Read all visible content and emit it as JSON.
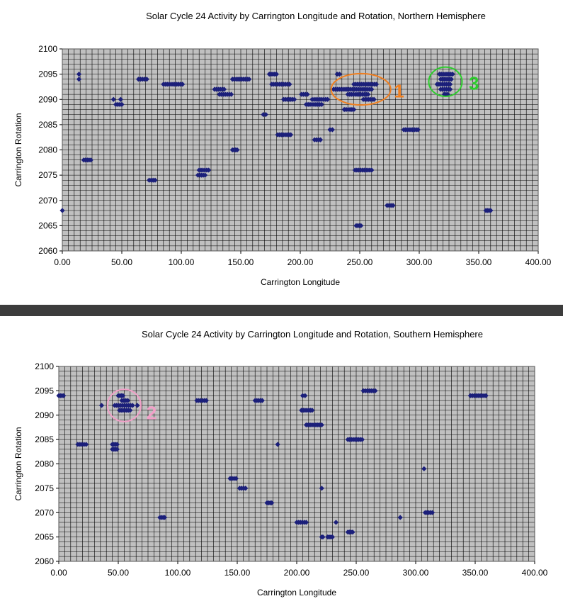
{
  "chart_data": [
    {
      "type": "scatter",
      "title": "Solar Cycle 24 Activity by Carrington Longitude and Rotation, Northern Hemisphere",
      "xlabel": "Carrington Longitude",
      "ylabel": "Carrington Rotation",
      "xlim": [
        0,
        400
      ],
      "ylim": [
        2060,
        2100
      ],
      "xticks": [
        "0.00",
        "50.00",
        "100.00",
        "150.00",
        "200.00",
        "250.00",
        "300.00",
        "350.00",
        "400.00"
      ],
      "yticks": [
        "2060",
        "2065",
        "2070",
        "2075",
        "2080",
        "2085",
        "2090",
        "2095",
        "2100"
      ],
      "grid": true,
      "marker_color": "#1b1f7a",
      "plot_bg": "#c0c0c0",
      "segments": [
        {
          "y": 2095,
          "x0": 14,
          "x1": 14
        },
        {
          "y": 2094,
          "x0": 14,
          "x1": 14
        },
        {
          "y": 2090,
          "x0": 43,
          "x1": 43
        },
        {
          "y": 2090,
          "x0": 49,
          "x1": 49
        },
        {
          "y": 2089,
          "x0": 45,
          "x1": 50
        },
        {
          "y": 2094,
          "x0": 64,
          "x1": 71
        },
        {
          "y": 2093,
          "x0": 85,
          "x1": 101
        },
        {
          "y": 2092,
          "x0": 128,
          "x1": 136
        },
        {
          "y": 2091,
          "x0": 132,
          "x1": 142
        },
        {
          "y": 2094,
          "x0": 143,
          "x1": 157
        },
        {
          "y": 2095,
          "x0": 174,
          "x1": 180
        },
        {
          "y": 2093,
          "x0": 176,
          "x1": 191
        },
        {
          "y": 2090,
          "x0": 186,
          "x1": 195
        },
        {
          "y": 2091,
          "x0": 201,
          "x1": 206
        },
        {
          "y": 2089,
          "x0": 205,
          "x1": 218
        },
        {
          "y": 2090,
          "x0": 210,
          "x1": 223
        },
        {
          "y": 2087,
          "x0": 169,
          "x1": 171
        },
        {
          "y": 2084,
          "x0": 225,
          "x1": 227
        },
        {
          "y": 2083,
          "x0": 181,
          "x1": 192
        },
        {
          "y": 2082,
          "x0": 212,
          "x1": 217
        },
        {
          "y": 2080,
          "x0": 143,
          "x1": 147
        },
        {
          "y": 2078,
          "x0": 18,
          "x1": 24
        },
        {
          "y": 2076,
          "x0": 115,
          "x1": 123
        },
        {
          "y": 2075,
          "x0": 114,
          "x1": 120
        },
        {
          "y": 2074,
          "x0": 73,
          "x1": 78
        },
        {
          "y": 2068,
          "x0": 0,
          "x1": 0
        },
        {
          "y": 2095,
          "x0": 231,
          "x1": 233
        },
        {
          "y": 2093,
          "x0": 245,
          "x1": 264
        },
        {
          "y": 2092,
          "x0": 228,
          "x1": 260
        },
        {
          "y": 2091,
          "x0": 240,
          "x1": 257
        },
        {
          "y": 2090,
          "x0": 253,
          "x1": 262
        },
        {
          "y": 2088,
          "x0": 237,
          "x1": 245
        },
        {
          "y": 2084,
          "x0": 287,
          "x1": 299
        },
        {
          "y": 2076,
          "x0": 246,
          "x1": 260
        },
        {
          "y": 2069,
          "x0": 273,
          "x1": 278
        },
        {
          "y": 2065,
          "x0": 247,
          "x1": 251
        },
        {
          "y": 2068,
          "x0": 356,
          "x1": 360
        },
        {
          "y": 2095,
          "x0": 317,
          "x1": 328
        },
        {
          "y": 2094,
          "x0": 318,
          "x1": 327
        },
        {
          "y": 2093,
          "x0": 315,
          "x1": 326
        },
        {
          "y": 2092,
          "x0": 318,
          "x1": 326
        },
        {
          "y": 2091,
          "x0": 321,
          "x1": 324
        }
      ],
      "annotations": [
        {
          "label": "1",
          "x": 251,
          "y": 2092,
          "rx": 25,
          "ry": 3.1,
          "color": "#f07f20",
          "label_x": 283,
          "label_y": 2090.4
        },
        {
          "label": "3",
          "x": 322,
          "y": 2093.5,
          "rx": 14,
          "ry": 2.9,
          "color": "#2ecc2e",
          "label_x": 346,
          "label_y": 2091.9
        }
      ]
    },
    {
      "type": "scatter",
      "title": "Solar Cycle 24 Activity by Carrington Longitude and Rotation, Southern Hemisphere",
      "xlabel": "Carrington Longitude",
      "ylabel": "Carrington Rotation",
      "xlim": [
        0,
        400
      ],
      "ylim": [
        2060,
        2100
      ],
      "xticks": [
        "0.00",
        "50.00",
        "100.00",
        "150.00",
        "200.00",
        "250.00",
        "300.00",
        "350.00",
        "400.00"
      ],
      "yticks": [
        "2060",
        "2065",
        "2070",
        "2075",
        "2080",
        "2085",
        "2090",
        "2095",
        "2100"
      ],
      "grid": true,
      "marker_color": "#1b1f7a",
      "plot_bg": "#c0c0c0",
      "segments": [
        {
          "y": 2094,
          "x0": 0,
          "x1": 4
        },
        {
          "y": 2084,
          "x0": 16,
          "x1": 23
        },
        {
          "y": 2084,
          "x0": 45,
          "x1": 49
        },
        {
          "y": 2083,
          "x0": 45,
          "x1": 49
        },
        {
          "y": 2092,
          "x0": 36,
          "x1": 36
        },
        {
          "y": 2094,
          "x0": 50,
          "x1": 54
        },
        {
          "y": 2093,
          "x0": 53,
          "x1": 58
        },
        {
          "y": 2092,
          "x0": 47,
          "x1": 62
        },
        {
          "y": 2091,
          "x0": 51,
          "x1": 60
        },
        {
          "y": 2092,
          "x0": 66,
          "x1": 66
        },
        {
          "y": 2069,
          "x0": 85,
          "x1": 89
        },
        {
          "y": 2093,
          "x0": 116,
          "x1": 124
        },
        {
          "y": 2077,
          "x0": 144,
          "x1": 149
        },
        {
          "y": 2075,
          "x0": 152,
          "x1": 157
        },
        {
          "y": 2093,
          "x0": 165,
          "x1": 171
        },
        {
          "y": 2072,
          "x0": 175,
          "x1": 179
        },
        {
          "y": 2084,
          "x0": 184,
          "x1": 184
        },
        {
          "y": 2068,
          "x0": 200,
          "x1": 208
        },
        {
          "y": 2094,
          "x0": 205,
          "x1": 207
        },
        {
          "y": 2091,
          "x0": 204,
          "x1": 213
        },
        {
          "y": 2088,
          "x0": 208,
          "x1": 221
        },
        {
          "y": 2075,
          "x0": 221,
          "x1": 221
        },
        {
          "y": 2065,
          "x0": 221,
          "x1": 222
        },
        {
          "y": 2065,
          "x0": 226,
          "x1": 230
        },
        {
          "y": 2068,
          "x0": 233,
          "x1": 233
        },
        {
          "y": 2066,
          "x0": 243,
          "x1": 247
        },
        {
          "y": 2085,
          "x0": 243,
          "x1": 255
        },
        {
          "y": 2095,
          "x0": 256,
          "x1": 266
        },
        {
          "y": 2069,
          "x0": 287,
          "x1": 287
        },
        {
          "y": 2079,
          "x0": 307,
          "x1": 307
        },
        {
          "y": 2070,
          "x0": 308,
          "x1": 314
        },
        {
          "y": 2094,
          "x0": 346,
          "x1": 359
        }
      ],
      "annotations": [
        {
          "label": "2",
          "x": 55,
          "y": 2092,
          "rx": 14,
          "ry": 3.3,
          "color": "#f2a0c8",
          "label_x": 78,
          "label_y": 2089.2
        }
      ]
    }
  ]
}
